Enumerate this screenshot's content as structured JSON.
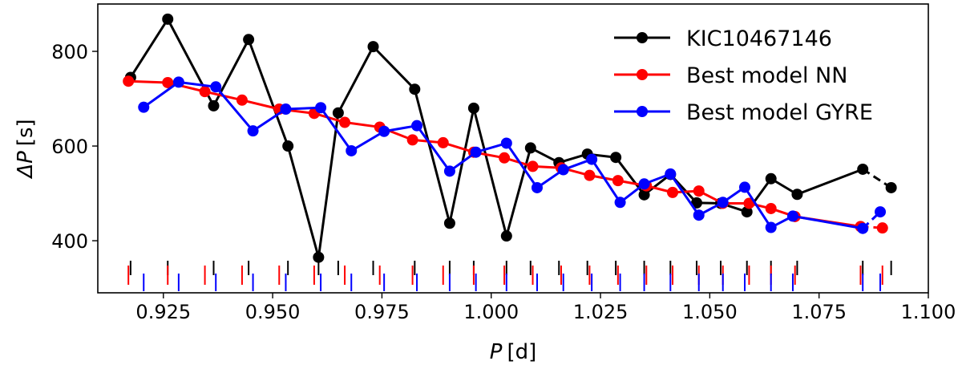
{
  "chart_data": {
    "type": "line",
    "xlabel_symbol": "P",
    "xlabel_unit": "[d]",
    "ylabel_symbol": "ΔP",
    "ylabel_unit": "[s]",
    "xlim": [
      0.91,
      1.1
    ],
    "ylim": [
      290,
      900
    ],
    "xticks": [
      0.925,
      0.95,
      0.975,
      1.0,
      1.025,
      1.05,
      1.075,
      1.1
    ],
    "xtick_labels": [
      "0.925",
      "0.950",
      "0.975",
      "1.000",
      "1.025",
      "1.050",
      "1.075",
      "1.100"
    ],
    "yticks": [
      400,
      600,
      800
    ],
    "ytick_labels": [
      "400",
      "600",
      "800"
    ],
    "legend_position": "top-right",
    "series": [
      {
        "name": "KIC10467146",
        "color": "#000000",
        "x": [
          0.9175,
          0.926,
          0.9365,
          0.9445,
          0.9535,
          0.9605,
          0.965,
          0.973,
          0.9825,
          0.9905,
          0.996,
          1.0035,
          1.009,
          1.0155,
          1.022,
          1.0285,
          1.035,
          1.041,
          1.047,
          1.0525,
          1.0585,
          1.064,
          1.07,
          1.085,
          1.0915
        ],
        "values": [
          745,
          868,
          685,
          825,
          600,
          365,
          670,
          810,
          720,
          437,
          680,
          410,
          596,
          565,
          583,
          576,
          497,
          540,
          480,
          479,
          461,
          531,
          498,
          551,
          512
        ],
        "dashed_last_segment": true
      },
      {
        "name": "Best model NN",
        "color": "#ff0000",
        "x": [
          0.917,
          0.926,
          0.9345,
          0.943,
          0.9515,
          0.9595,
          0.9665,
          0.9745,
          0.982,
          0.989,
          0.996,
          1.003,
          1.0095,
          1.016,
          1.0225,
          1.029,
          1.0355,
          1.0415,
          1.0475,
          1.053,
          1.059,
          1.064,
          1.0695,
          1.0845,
          1.0895
        ],
        "values": [
          737,
          734,
          715,
          697,
          678,
          669,
          650,
          640,
          613,
          607,
          587,
          575,
          557,
          554,
          538,
          527,
          516,
          502,
          505,
          479,
          479,
          468,
          451,
          430,
          427
        ],
        "dashed_last_segment": true
      },
      {
        "name": "Best model GYRE",
        "color": "#0000ff",
        "x": [
          0.9205,
          0.9285,
          0.937,
          0.9455,
          0.953,
          0.961,
          0.968,
          0.9755,
          0.983,
          0.9905,
          0.9965,
          1.0035,
          1.0105,
          1.0165,
          1.023,
          1.0295,
          1.035,
          1.041,
          1.0475,
          1.053,
          1.058,
          1.064,
          1.069,
          1.085,
          1.089
        ],
        "values": [
          682,
          735,
          725,
          632,
          678,
          681,
          590,
          631,
          643,
          547,
          587,
          606,
          512,
          550,
          572,
          481,
          520,
          541,
          454,
          481,
          513,
          428,
          452,
          426,
          461
        ],
        "dashed_last_segment": true
      }
    ]
  }
}
